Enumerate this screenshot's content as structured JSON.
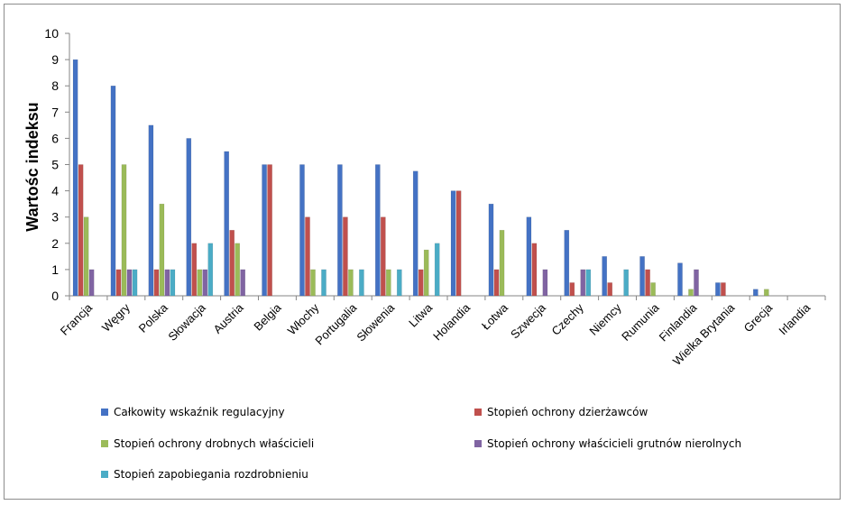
{
  "chart_data": {
    "type": "bar",
    "title": "",
    "xlabel": "",
    "ylabel": "Wartośc indeksu",
    "ylim": [
      0,
      10
    ],
    "yticks": [
      "0",
      "1",
      "2",
      "3",
      "4",
      "5",
      "6",
      "7",
      "8",
      "9",
      "10"
    ],
    "grid": false,
    "legend_position": "bottom",
    "categories": [
      "Francja",
      "Węgry",
      "Polska",
      "Słowacja",
      "Austria",
      "Belgia",
      "Włochy",
      "Portugalia",
      "Słowenia",
      "Litwa",
      "Holandia",
      "Łotwa",
      "Szwecja",
      "Czechy",
      "Niemcy",
      "Rumunia",
      "Finlandia",
      "Wielka Brytania",
      "Grecja",
      "Irlandia"
    ],
    "series": [
      {
        "name": "Całkowity wskaźnik regulacyjny",
        "color": "#4472c4",
        "values": [
          9,
          8,
          6.5,
          6,
          5.5,
          5,
          5,
          5,
          5,
          4.75,
          4,
          3.5,
          3,
          2.5,
          1.5,
          1.5,
          1.25,
          0.5,
          0.25,
          0
        ]
      },
      {
        "name": "Stopień ochrony dzierżawców",
        "color": "#c0504d",
        "values": [
          5,
          1,
          1,
          2,
          2.5,
          5,
          3,
          3,
          3,
          1,
          4,
          1,
          2,
          0.5,
          0.5,
          1,
          0,
          0.5,
          0,
          0
        ]
      },
      {
        "name": "Stopień ochrony drobnych właścicieli",
        "color": "#9bbb59",
        "values": [
          3,
          5,
          3.5,
          1,
          2,
          0,
          1,
          1,
          1,
          1.75,
          0,
          2.5,
          0,
          0,
          0,
          0.5,
          0.25,
          0,
          0.25,
          0
        ]
      },
      {
        "name": "Stopień ochrony właścicieli grutnów nierolnych",
        "color": "#8064a2",
        "values": [
          1,
          1,
          1,
          1,
          1,
          0,
          0,
          0,
          0,
          0,
          0,
          0,
          1,
          1,
          0,
          0,
          1,
          0,
          0,
          0
        ]
      },
      {
        "name": "Stopień zapobiegania rozdrobnieniu",
        "color": "#4bacc6",
        "values": [
          0,
          1,
          1,
          2,
          0,
          0,
          1,
          1,
          1,
          2,
          0,
          0,
          0,
          1,
          1,
          0,
          0,
          0,
          0,
          0
        ]
      }
    ]
  }
}
